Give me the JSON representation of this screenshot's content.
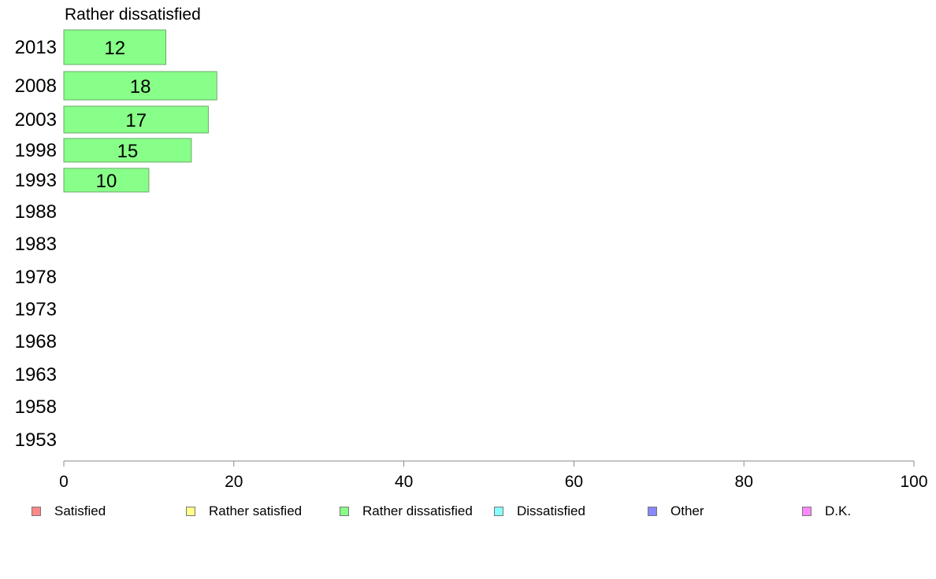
{
  "chart_data": {
    "type": "bar",
    "orientation": "horizontal",
    "title": "Rather dissatisfied",
    "categories": [
      "2013",
      "2008",
      "2003",
      "1998",
      "1993",
      "1988",
      "1983",
      "1978",
      "1973",
      "1968",
      "1963",
      "1958",
      "1953"
    ],
    "values": [
      12,
      18,
      17,
      15,
      10,
      null,
      null,
      null,
      null,
      null,
      null,
      null,
      null
    ],
    "xlim": [
      0,
      100
    ],
    "xticks": [
      "0",
      "20",
      "40",
      "60",
      "80",
      "100"
    ],
    "grid": false,
    "bar_color": "#88ff88",
    "legend": {
      "placement": "bottom",
      "entries": [
        {
          "label": "Satisfied",
          "color": "#ff8888"
        },
        {
          "label": "Rather satisfied",
          "color": "#ffff88"
        },
        {
          "label": "Rather dissatisfied",
          "color": "#88ff88"
        },
        {
          "label": "Dissatisfied",
          "color": "#88ffff"
        },
        {
          "label": "Other",
          "color": "#8888ff"
        },
        {
          "label": "D.K.",
          "color": "#ff88ff"
        }
      ]
    }
  }
}
